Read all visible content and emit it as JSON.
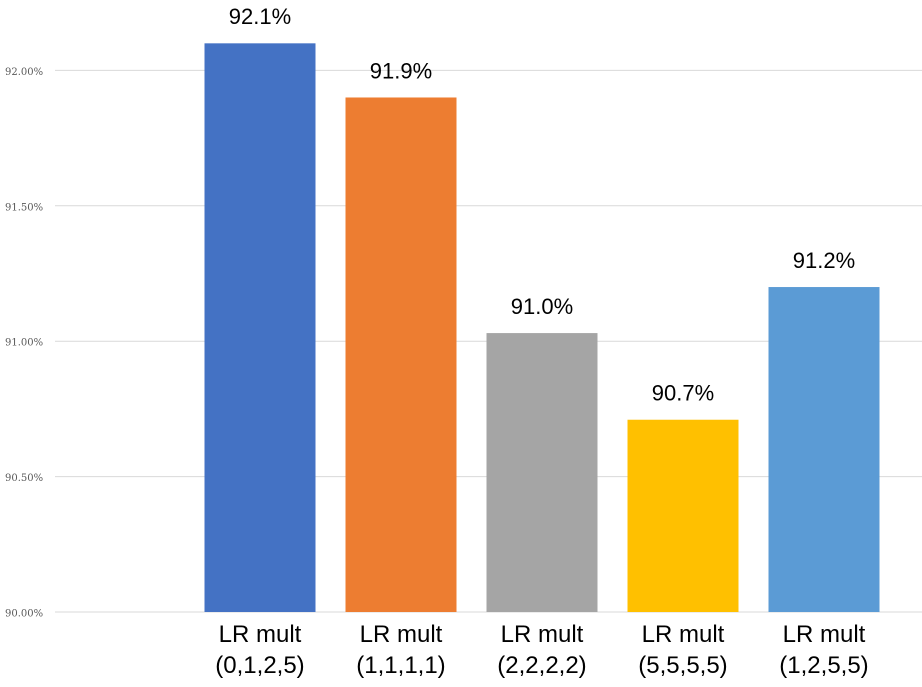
{
  "chart_data": {
    "type": "bar",
    "categories": [
      "LR mult (0,1,2,5)",
      "LR mult (1,1,1,1)",
      "LR mult (2,2,2,2)",
      "LR mult (5,5,5,5)",
      "LR mult (1,2,5,5)"
    ],
    "values": [
      92.1,
      91.9,
      91.03,
      90.71,
      91.2
    ],
    "value_labels": [
      "92.1%",
      "91.9%",
      "91.0%",
      "90.7%",
      "91.2%"
    ],
    "colors": [
      "#4472c4",
      "#ed7d31",
      "#a5a5a5",
      "#ffc000",
      "#5b9bd5"
    ],
    "ylim": [
      90,
      92.26
    ],
    "yticks": [
      {
        "value": 90,
        "label": "90.00%"
      },
      {
        "value": 90.5,
        "label": "90.50%"
      },
      {
        "value": 91,
        "label": "91.00%"
      },
      {
        "value": 91.5,
        "label": "91.50%"
      },
      {
        "value": 92,
        "label": "92.00%"
      }
    ],
    "grid": true
  }
}
